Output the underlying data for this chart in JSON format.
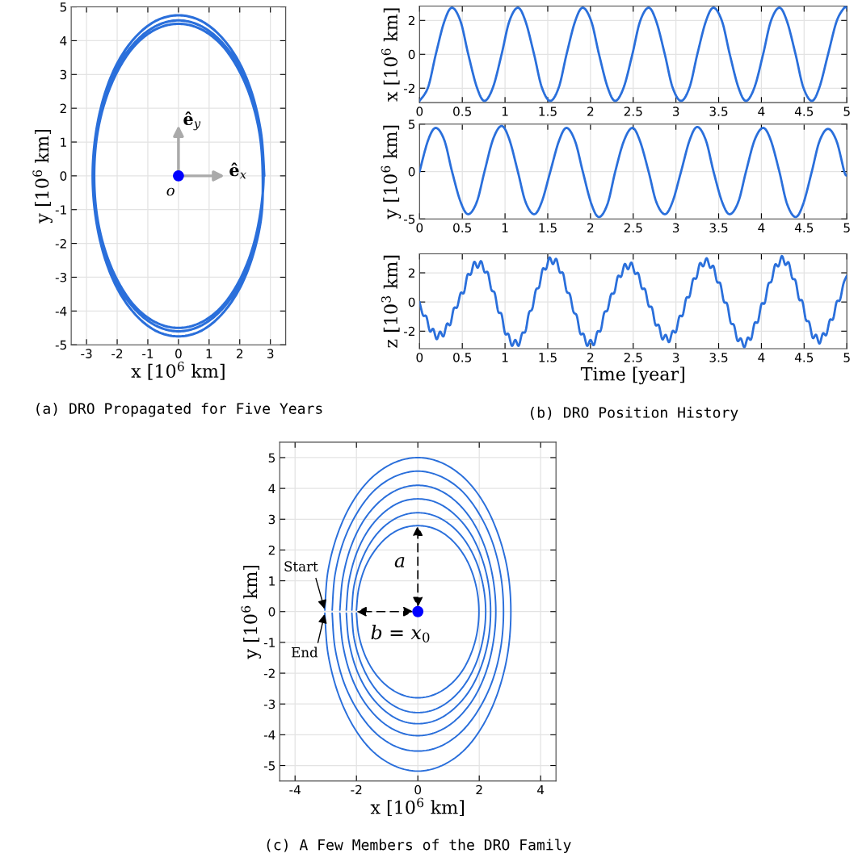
{
  "chart_data": [
    {
      "type": "line",
      "xlabel": "x [10$^{6}$ km]",
      "ylabel": "y [10$^{6}$ km]",
      "xlim": [
        -3.5,
        3.5
      ],
      "xticks": [
        -3,
        -2,
        -1,
        0,
        1,
        2,
        3
      ],
      "ylim": [
        -5,
        5
      ],
      "yticks": [
        -5,
        -4,
        -3,
        -2,
        -1,
        0,
        1,
        2,
        3,
        4,
        5
      ],
      "grid": true,
      "series": [
        {
          "color": "#2a6fdb",
          "x": [
            2.8,
            2.7,
            2.42,
            1.98,
            1.4,
            0.73,
            0,
            -0.73,
            -1.4,
            -1.98,
            -2.42,
            -2.7,
            -2.8,
            -2.7,
            -2.42,
            -1.98,
            -1.4,
            -0.73,
            0,
            0.73,
            1.4,
            1.98,
            2.42,
            2.7,
            2.75,
            2.66,
            2.38,
            1.94,
            1.38,
            0.71,
            0,
            -0.71,
            -1.38,
            -1.94,
            -2.38,
            -2.66,
            -2.75,
            -2.66,
            -2.38,
            -1.94,
            -1.38,
            -0.71,
            0,
            0.71,
            1.38,
            1.94,
            2.38,
            2.66,
            2.78,
            2.69,
            2.41,
            1.97,
            1.39,
            0.72,
            0,
            -0.72,
            -1.39,
            -1.97,
            -2.41,
            -2.69,
            -2.78,
            -2.69,
            -2.41,
            -1.97,
            -1.39,
            -0.72,
            0,
            0.72,
            1.39,
            1.97,
            2.41,
            2.69
          ],
          "values": [
            0,
            1.23,
            2.38,
            3.36,
            4.11,
            4.59,
            4.75,
            4.59,
            4.11,
            3.36,
            2.38,
            1.23,
            0,
            -1.23,
            -2.38,
            -3.36,
            -4.11,
            -4.59,
            -4.75,
            -4.59,
            -4.11,
            -3.36,
            -2.38,
            -1.23,
            0,
            1.17,
            2.25,
            3.18,
            3.9,
            4.35,
            4.5,
            4.35,
            3.9,
            3.18,
            2.25,
            1.17,
            0,
            -1.17,
            -2.25,
            -3.18,
            -3.9,
            -4.35,
            -4.5,
            -4.35,
            -3.9,
            -3.18,
            -2.25,
            -1.17,
            0,
            1.19,
            2.3,
            3.25,
            3.98,
            4.44,
            4.6,
            4.44,
            3.98,
            3.25,
            2.3,
            1.19,
            0,
            -1.19,
            -2.3,
            -3.25,
            -3.98,
            -4.44,
            -4.6,
            -4.44,
            -3.98,
            -3.25,
            -2.3,
            -1.19
          ]
        },
        {
          "type": "scatter",
          "color": "#0000ff",
          "x": [
            0
          ],
          "values": [
            0
          ]
        }
      ],
      "annotations": [
        "ê$_{y}$",
        "ê$_{x}$",
        {
          "text": "o",
          "x": 0,
          "y": 0
        },
        "(a) DRO Propagated for Five Years"
      ]
    },
    {
      "type": "line",
      "ylabel": "x [10$^{6}$ km]",
      "xlim": [
        0,
        5
      ],
      "xticks": [
        0,
        0.5,
        1,
        1.5,
        2,
        2.5,
        3,
        3.5,
        4,
        4.5,
        5
      ],
      "ylim": [
        -2.85,
        2.85
      ],
      "yticks": [
        -2,
        0,
        2
      ],
      "grid": true,
      "x": [
        0,
        0.1,
        0.19,
        0.29,
        0.38,
        0.48,
        0.57,
        0.67,
        0.76,
        0.86,
        0.96,
        1.05,
        1.15,
        1.24,
        1.34,
        1.43,
        1.53,
        1.63,
        1.72,
        1.82,
        1.91,
        2.01,
        2.1,
        2.2,
        2.29,
        2.39,
        2.49,
        2.58,
        2.68,
        2.77,
        2.87,
        2.96,
        3.06,
        3.16,
        3.25,
        3.35,
        3.44,
        3.54,
        3.63,
        3.73,
        3.82,
        3.92,
        4.02,
        4.11,
        4.21,
        4.3,
        4.4,
        4.49,
        4.59,
        4.68,
        4.78,
        4.88,
        4.97,
        5.0
      ],
      "series": [
        {
          "color": "#2a6fdb",
          "values": [
            -2.75,
            -1.94,
            0,
            1.94,
            2.75,
            1.94,
            0,
            -1.94,
            -2.75,
            -1.94,
            0,
            1.94,
            2.75,
            1.94,
            0,
            -1.94,
            -2.75,
            -1.94,
            0,
            1.94,
            2.75,
            1.94,
            0,
            -1.94,
            -2.75,
            -1.94,
            0,
            1.94,
            2.75,
            1.94,
            0,
            -1.94,
            -2.75,
            -1.94,
            0,
            1.94,
            2.75,
            1.94,
            0,
            -1.94,
            -2.75,
            -1.94,
            0,
            1.94,
            2.75,
            1.94,
            0,
            -1.94,
            -2.75,
            -1.94,
            0,
            1.94,
            2.75,
            2.72
          ]
        }
      ]
    },
    {
      "type": "line",
      "ylabel": "y [10$^{6}$ km]",
      "xlim": [
        0,
        5
      ],
      "xticks": [
        0,
        0.5,
        1,
        1.5,
        2,
        2.5,
        3,
        3.5,
        4,
        4.5,
        5
      ],
      "ylim": [
        -5,
        5
      ],
      "yticks": [
        -5,
        0,
        5
      ],
      "grid": true,
      "x": [
        0,
        0.1,
        0.19,
        0.29,
        0.38,
        0.48,
        0.57,
        0.67,
        0.76,
        0.86,
        0.96,
        1.05,
        1.15,
        1.24,
        1.34,
        1.43,
        1.53,
        1.63,
        1.72,
        1.82,
        1.91,
        2.01,
        2.1,
        2.2,
        2.29,
        2.39,
        2.49,
        2.58,
        2.68,
        2.77,
        2.87,
        2.96,
        3.06,
        3.16,
        3.25,
        3.35,
        3.44,
        3.54,
        3.63,
        3.73,
        3.82,
        3.92,
        4.02,
        4.11,
        4.21,
        4.3,
        4.4,
        4.49,
        4.59,
        4.68,
        4.78,
        4.88,
        4.97,
        5.0
      ],
      "series": [
        {
          "color": "#2a6fdb",
          "values": [
            0,
            3.3,
            4.6,
            3.3,
            0,
            -3.2,
            -4.5,
            -3.2,
            0,
            3.4,
            4.8,
            3.4,
            0,
            -3.2,
            -4.5,
            -3.2,
            0,
            3.2,
            4.6,
            3.2,
            0,
            -3.4,
            -4.8,
            -3.4,
            0,
            3.2,
            4.6,
            3.2,
            0,
            -3.2,
            -4.5,
            -3.2,
            0,
            3.3,
            4.7,
            3.3,
            0,
            -3.2,
            -4.5,
            -3.2,
            0,
            3.3,
            4.6,
            3.3,
            0,
            -3.4,
            -4.8,
            -3.4,
            0,
            3.2,
            4.5,
            3.2,
            0,
            -0.4
          ]
        }
      ]
    },
    {
      "type": "line",
      "xlabel": "Time [year]",
      "ylabel": "z [10$^{3}$ km]",
      "xlim": [
        0,
        5
      ],
      "xticks": [
        0,
        0.5,
        1,
        1.5,
        2,
        2.5,
        3,
        3.5,
        4,
        4.5,
        5
      ],
      "ylim": [
        -3.2,
        3.3
      ],
      "yticks": [
        -2,
        0,
        2
      ],
      "grid": true,
      "x": [
        0,
        0.04,
        0.08,
        0.12,
        0.16,
        0.2,
        0.24,
        0.28,
        0.32,
        0.36,
        0.4,
        0.44,
        0.48,
        0.52,
        0.56,
        0.6,
        0.64,
        0.68,
        0.72,
        0.76,
        0.8,
        0.84,
        0.88,
        0.92,
        0.96,
        1.0,
        1.04,
        1.08,
        1.12,
        1.16,
        1.2,
        1.24,
        1.28,
        1.32,
        1.36,
        1.4,
        1.44,
        1.48,
        1.52,
        1.56,
        1.6,
        1.64,
        1.68,
        1.72,
        1.76,
        1.8,
        1.84,
        1.88,
        1.92,
        1.96,
        2.0,
        2.04,
        2.08,
        2.12,
        2.16,
        2.2,
        2.24,
        2.28,
        2.32,
        2.36,
        2.4,
        2.44,
        2.48,
        2.52,
        2.56,
        2.6,
        2.64,
        2.68,
        2.72,
        2.76,
        2.8,
        2.84,
        2.88,
        2.92,
        2.96,
        3.0,
        3.04,
        3.08,
        3.12,
        3.16,
        3.2,
        3.24,
        3.28,
        3.32,
        3.36,
        3.4,
        3.44,
        3.48,
        3.52,
        3.56,
        3.6,
        3.64,
        3.68,
        3.72,
        3.76,
        3.8,
        3.84,
        3.88,
        3.92,
        3.96,
        4.0,
        4.04,
        4.08,
        4.12,
        4.16,
        4.2,
        4.24,
        4.28,
        4.32,
        4.36,
        4.4,
        4.44,
        4.48,
        4.52,
        4.56,
        4.6,
        4.64,
        4.68,
        4.72,
        4.76,
        4.8,
        4.84,
        4.88,
        4.92,
        4.96,
        5.0
      ],
      "series": [
        {
          "color": "#2a6fdb",
          "values": [
            0,
            -0.9,
            -1.0,
            -2.0,
            -1.85,
            -2.55,
            -2.03,
            -2.35,
            -1.5,
            -1.55,
            -0.45,
            -0.35,
            0.6,
            0.65,
            1.85,
            1.9,
            2.75,
            2.35,
            2.8,
            2.05,
            2.0,
            0.85,
            0.6,
            -0.65,
            -0.85,
            -2.15,
            -2.2,
            -3.0,
            -2.6,
            -3.0,
            -2.15,
            -2.0,
            -0.75,
            -0.45,
            0.8,
            1.05,
            2.25,
            2.25,
            3.05,
            2.6,
            2.95,
            2.05,
            1.95,
            0.75,
            0.5,
            -0.65,
            -0.95,
            -2.15,
            -2.2,
            -3.0,
            -2.6,
            -2.95,
            -2.05,
            -1.95,
            -0.75,
            -0.55,
            0.5,
            0.65,
            1.75,
            1.75,
            2.6,
            2.25,
            2.7,
            1.95,
            1.95,
            0.95,
            0.85,
            -0.25,
            -0.4,
            -1.55,
            -1.6,
            -2.55,
            -2.25,
            -2.75,
            -2.0,
            -2.05,
            -1.0,
            -0.9,
            0.25,
            0.4,
            1.55,
            1.65,
            2.65,
            2.45,
            3.0,
            2.35,
            2.45,
            1.4,
            1.25,
            0.05,
            -0.15,
            -1.4,
            -1.6,
            -2.65,
            -2.5,
            -3.1,
            -2.45,
            -2.55,
            -1.45,
            -1.35,
            -0.15,
            -0.05,
            1.2,
            1.45,
            2.55,
            2.45,
            3.15,
            2.55,
            2.7,
            1.65,
            1.45,
            0.2,
            0.05,
            -1.2,
            -1.4,
            -2.45,
            -2.25,
            -2.85,
            -2.15,
            -2.25,
            -1.25,
            -1.15,
            0.0,
            0.15,
            1.25,
            1.8
          ]
        }
      ],
      "annotations": [
        "(b) DRO Position History"
      ]
    },
    {
      "type": "line",
      "xlabel": "x [10$^{6}$ km]",
      "ylabel": "y [10$^{6}$ km]",
      "xlim": [
        -4.5,
        4.5
      ],
      "xticks": [
        -4,
        -2,
        0,
        2,
        4
      ],
      "ylim": [
        -5.5,
        5.5
      ],
      "yticks": [
        -5,
        -4,
        -3,
        -2,
        -1,
        0,
        1,
        2,
        3,
        4,
        5
      ],
      "grid": true,
      "series": [
        {
          "color": "#2a6fdb",
          "x": [
            -2.0,
            -1.93,
            -1.73,
            -1.41,
            -1.0,
            -0.52,
            0,
            0.52,
            1.0,
            1.41,
            1.72,
            1.92,
            1.99,
            1.92,
            1.72,
            1.41,
            1.0,
            0.52,
            0,
            -0.52,
            -1.0,
            -1.41,
            -1.73,
            -1.93,
            -2.0
          ],
          "values": [
            0.05,
            0.72,
            1.4,
            1.97,
            2.42,
            2.7,
            2.79,
            2.7,
            2.42,
            1.97,
            1.4,
            0.72,
            0,
            -0.73,
            -1.4,
            -1.98,
            -2.42,
            -2.7,
            -2.8,
            -2.7,
            -2.42,
            -1.98,
            -1.4,
            -0.73,
            -0.05
          ]
        },
        {
          "color": "#2a6fdb",
          "x": [
            -2.15,
            -2.08,
            -1.86,
            -1.52,
            -1.08,
            -0.56,
            0,
            0.57,
            1.1,
            1.56,
            1.91,
            2.13,
            2.21,
            2.13,
            1.91,
            1.56,
            1.1,
            0.57,
            0,
            -0.56,
            -1.08,
            -1.52,
            -1.86,
            -2.08,
            -2.15
          ],
          "values": [
            0.05,
            0.83,
            1.6,
            2.27,
            2.78,
            3.1,
            3.21,
            3.1,
            2.78,
            2.27,
            1.6,
            0.83,
            0,
            -0.85,
            -1.64,
            -2.32,
            -2.84,
            -3.17,
            -3.28,
            -3.17,
            -2.84,
            -2.32,
            -1.64,
            -0.85,
            -0.05
          ]
        },
        {
          "color": "#2a6fdb",
          "x": [
            -2.33,
            -2.25,
            -2.02,
            -1.65,
            -1.16,
            -0.6,
            0,
            0.61,
            1.18,
            1.68,
            2.05,
            2.29,
            2.37,
            2.29,
            2.05,
            1.68,
            1.18,
            0.61,
            0,
            -0.6,
            -1.16,
            -1.65,
            -2.02,
            -2.25,
            -2.33
          ],
          "values": [
            0.05,
            0.95,
            1.83,
            2.59,
            3.17,
            3.54,
            3.66,
            3.54,
            3.17,
            2.59,
            1.83,
            0.95,
            0,
            -0.94,
            -1.82,
            -2.57,
            -3.15,
            -3.52,
            -3.64,
            -3.52,
            -3.15,
            -2.57,
            -1.82,
            -0.94,
            -0.05
          ]
        },
        {
          "color": "#2a6fdb",
          "x": [
            -2.54,
            -2.45,
            -2.2,
            -1.8,
            -1.27,
            -0.66,
            0,
            0.66,
            1.27,
            1.8,
            2.2,
            2.45,
            2.54,
            2.45,
            2.2,
            1.8,
            1.27,
            0.66,
            0,
            -0.66,
            -1.27,
            -1.8,
            -2.2,
            -2.45,
            -2.54
          ],
          "values": [
            0.05,
            1.06,
            2.05,
            2.9,
            3.55,
            3.96,
            4.1,
            3.96,
            3.55,
            2.9,
            2.05,
            1.06,
            0,
            -1.04,
            -2.02,
            -2.85,
            -3.49,
            -3.89,
            -4.03,
            -3.89,
            -3.49,
            -2.85,
            -2.02,
            -1.04,
            -0.05
          ]
        },
        {
          "color": "#2a6fdb",
          "x": [
            -2.79,
            -2.7,
            -2.42,
            -1.97,
            -1.4,
            -0.72,
            0,
            0.72,
            1.4,
            1.97,
            2.42,
            2.7,
            2.79,
            2.7,
            2.42,
            1.97,
            1.4,
            0.72,
            0,
            -0.72,
            -1.4,
            -1.97,
            -2.42,
            -2.7,
            -2.79
          ],
          "values": [
            0.05,
            1.18,
            2.28,
            3.22,
            3.95,
            4.4,
            4.56,
            4.4,
            3.95,
            3.22,
            2.28,
            1.18,
            0,
            -1.17,
            -2.27,
            -3.2,
            -3.92,
            -4.38,
            -4.53,
            -4.38,
            -3.92,
            -3.2,
            -2.27,
            -1.17,
            -0.05
          ]
        },
        {
          "color": "#2a6fdb",
          "x": [
            -3.03,
            -2.93,
            -2.62,
            -2.14,
            -1.52,
            -0.78,
            0,
            0.78,
            1.52,
            2.14,
            2.62,
            2.93,
            3.03,
            2.93,
            2.62,
            2.14,
            1.52,
            0.78,
            0,
            -0.78,
            -1.52,
            -2.14,
            -2.62,
            -2.93,
            -3.03
          ],
          "values": [
            0.05,
            1.3,
            2.5,
            3.54,
            4.33,
            4.83,
            5.0,
            4.83,
            4.33,
            3.54,
            2.5,
            1.3,
            0,
            -1.34,
            -2.59,
            -3.66,
            -4.49,
            -5.0,
            -5.18,
            -5.0,
            -4.49,
            -3.66,
            -2.59,
            -1.34,
            -0.05
          ]
        },
        {
          "type": "scatter",
          "color": "#0000ff",
          "x": [
            0
          ],
          "values": [
            0
          ]
        }
      ],
      "annotations": [
        {
          "text": "Start",
          "x": -3.03,
          "y": 0.05
        },
        {
          "text": "End",
          "x": -3.03,
          "y": -0.05
        },
        {
          "text": "a",
          "x": 0,
          "y": 2.79
        },
        {
          "text": "b = x$_{0}$",
          "x": -2.0,
          "y": 0
        },
        "(c) A Few Members of the DRO Family"
      ]
    }
  ]
}
